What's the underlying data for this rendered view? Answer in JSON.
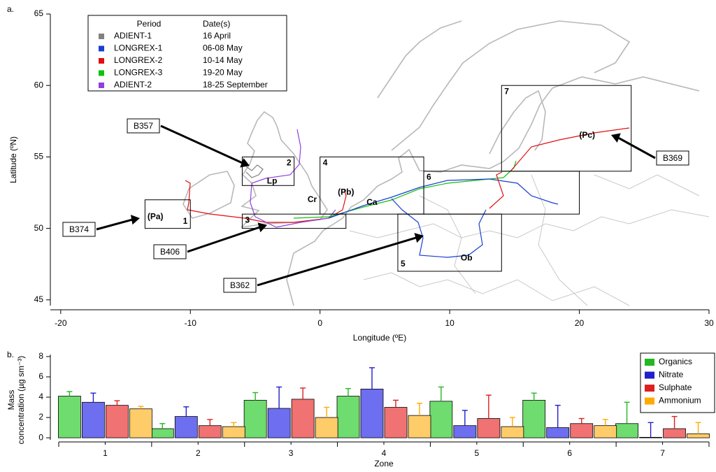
{
  "chart_data": [
    {
      "type": "map",
      "panel_label": "a.",
      "xlabel": "Longitude (ºE)",
      "ylabel": "Latitude (ºN)",
      "xlim": [
        -20.8,
        30
      ],
      "ylim": [
        44.6,
        65
      ],
      "xticks": [
        -20,
        -10,
        0,
        10,
        20,
        30
      ],
      "yticks": [
        45,
        50,
        55,
        60,
        65
      ],
      "legend": {
        "headers": [
          "Period",
          "Date(s)"
        ],
        "entries": [
          {
            "period": "ADIENT-1",
            "date": "16 April",
            "color": "#808080"
          },
          {
            "period": "LONGREX-1",
            "date": "06-08 May",
            "color": "#1a3fd0"
          },
          {
            "period": "LONGREX-2",
            "date": "10-14 May",
            "color": "#e01010"
          },
          {
            "period": "LONGREX-3",
            "date": "19-20 May",
            "color": "#10c010"
          },
          {
            "period": "ADIENT-2",
            "date": "18-25 September",
            "color": "#9040e0"
          }
        ]
      },
      "zones": [
        {
          "label": "1",
          "lon": [
            -13.5,
            -10
          ],
          "lat": [
            50,
            52
          ]
        },
        {
          "label": "2",
          "lon": [
            -6,
            -2
          ],
          "lat": [
            53,
            55
          ]
        },
        {
          "label": "3",
          "lon": [
            -6,
            2
          ],
          "lat": [
            50,
            51
          ]
        },
        {
          "label": "4",
          "lon": [
            0,
            8
          ],
          "lat": [
            51,
            55
          ]
        },
        {
          "label": "5",
          "lon": [
            6,
            14
          ],
          "lat": [
            47,
            51
          ]
        },
        {
          "label": "6",
          "lon": [
            8,
            20
          ],
          "lat": [
            51,
            54
          ]
        },
        {
          "label": "7",
          "lon": [
            14,
            24
          ],
          "lat": [
            54,
            60
          ]
        }
      ],
      "sites": [
        {
          "label": "(Pa)",
          "lon": -12.7,
          "lat": 50.8
        },
        {
          "label": "Lp",
          "lon": -3.7,
          "lat": 53.3
        },
        {
          "label": "Cr",
          "lon": -0.6,
          "lat": 52
        },
        {
          "label": "(Pb)",
          "lon": 2,
          "lat": 52.5
        },
        {
          "label": "Ca",
          "lon": 4,
          "lat": 51.8
        },
        {
          "label": "Ob",
          "lon": 11.3,
          "lat": 47.9
        },
        {
          "label": "(Pc)",
          "lon": 20.6,
          "lat": 56.5
        }
      ],
      "callouts": [
        "B357",
        "B374",
        "B406",
        "B362",
        "B369"
      ]
    },
    {
      "type": "bar",
      "panel_label": "b.",
      "xlabel": "Zone",
      "ylabel_lines": [
        "Mass",
        "concentration (µg sm⁻³)"
      ],
      "categories": [
        "1",
        "2",
        "3",
        "4",
        "5",
        "6",
        "7"
      ],
      "ylim": [
        -0.2,
        8.2
      ],
      "yticks": [
        0,
        2,
        4,
        6,
        8
      ],
      "series": [
        {
          "name": "Organics",
          "color": "#6edc6e",
          "error_color": "#22b822",
          "values": [
            4.1,
            0.9,
            3.7,
            4.1,
            3.6,
            3.7,
            1.4
          ],
          "errors": [
            0.45,
            0.5,
            0.75,
            0.75,
            1.4,
            0.7,
            2.1
          ]
        },
        {
          "name": "Nitrate",
          "color": "#6e6ef0",
          "error_color": "#2020cc",
          "values": [
            3.5,
            2.1,
            2.9,
            4.8,
            1.2,
            1.0,
            0.05
          ],
          "errors": [
            0.9,
            0.95,
            2.1,
            2.1,
            1.5,
            2.2,
            1.45
          ]
        },
        {
          "name": "Sulphate",
          "color": "#f07272",
          "error_color": "#dd2020",
          "values": [
            3.2,
            1.2,
            3.8,
            3.0,
            1.9,
            1.4,
            0.9
          ],
          "errors": [
            0.45,
            0.6,
            1.1,
            0.7,
            2.3,
            0.5,
            1.2
          ]
        },
        {
          "name": "Ammonium",
          "color": "#ffcc6a",
          "error_color": "#ffaa00",
          "values": [
            2.85,
            1.1,
            2.0,
            2.2,
            1.1,
            1.2,
            0.4
          ],
          "errors": [
            0.25,
            0.4,
            1.0,
            1.2,
            0.9,
            0.6,
            1.1
          ]
        }
      ],
      "legend_position": "upper right"
    }
  ]
}
